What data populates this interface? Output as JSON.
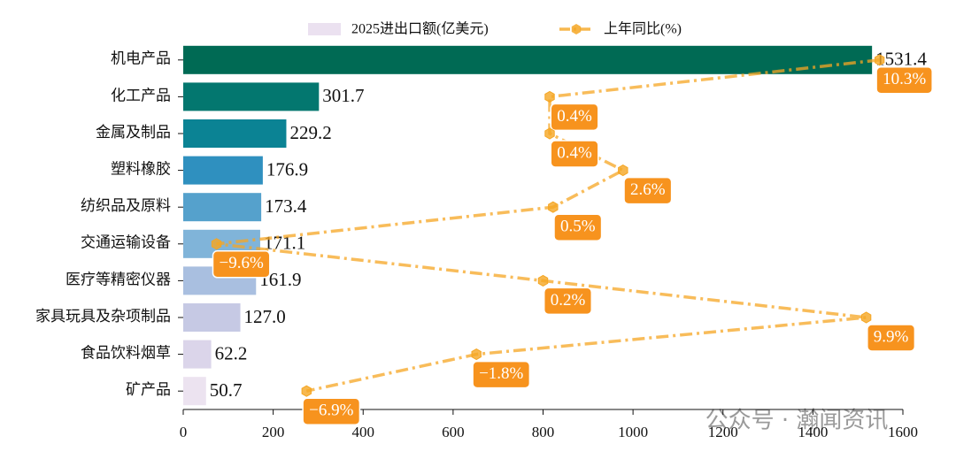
{
  "chart_data": {
    "type": "hbar-line",
    "categories": [
      "机电产品",
      "化工产品",
      "金属及制品",
      "塑料橡胶",
      "纺织品及原料",
      "交通运输设备",
      "医疗等精密仪器",
      "家具玩具及杂项制品",
      "食品饮料烟草",
      "矿产品"
    ],
    "series": [
      {
        "name": "2025进出口额(亿美元)",
        "color": "#ebe1f0",
        "colors": [
          "#006a54",
          "#03776f",
          "#0b8394",
          "#2f90bf",
          "#55a1cc",
          "#80b4d9",
          "#a9bfe0",
          "#c6c9e4",
          "#dbd5ea",
          "#ece3f0"
        ],
        "values": [
          1531.4,
          301.7,
          229.2,
          176.9,
          173.4,
          171.1,
          161.9,
          127.0,
          62.2,
          50.7
        ],
        "value_labels": [
          "1531.4",
          "301.7",
          "229.2",
          "176.9",
          "173.4",
          "171.1",
          "161.9",
          "127.0",
          "62.2",
          "50.7"
        ]
      },
      {
        "name": "上年同比(%)",
        "color": "#f5a623",
        "axis": "x2",
        "values": [
          10.3,
          0.4,
          0.4,
          2.6,
          0.5,
          -9.6,
          0.2,
          9.9,
          -1.8,
          -6.9
        ],
        "value_labels": [
          "10.3%",
          "0.4%",
          "0.4%",
          "2.6%",
          "0.5%",
          "−9.6%",
          "0.2%",
          "9.9%",
          "−1.8%",
          "−6.9%"
        ]
      }
    ],
    "xlim": [
      0,
      1600
    ],
    "xticks": [
      0,
      200,
      400,
      600,
      800,
      1000,
      1200,
      1400,
      1600
    ],
    "x2lim": [
      -10.6,
      11.0
    ],
    "watermark": "公众号 · 瀚闻资讯"
  }
}
